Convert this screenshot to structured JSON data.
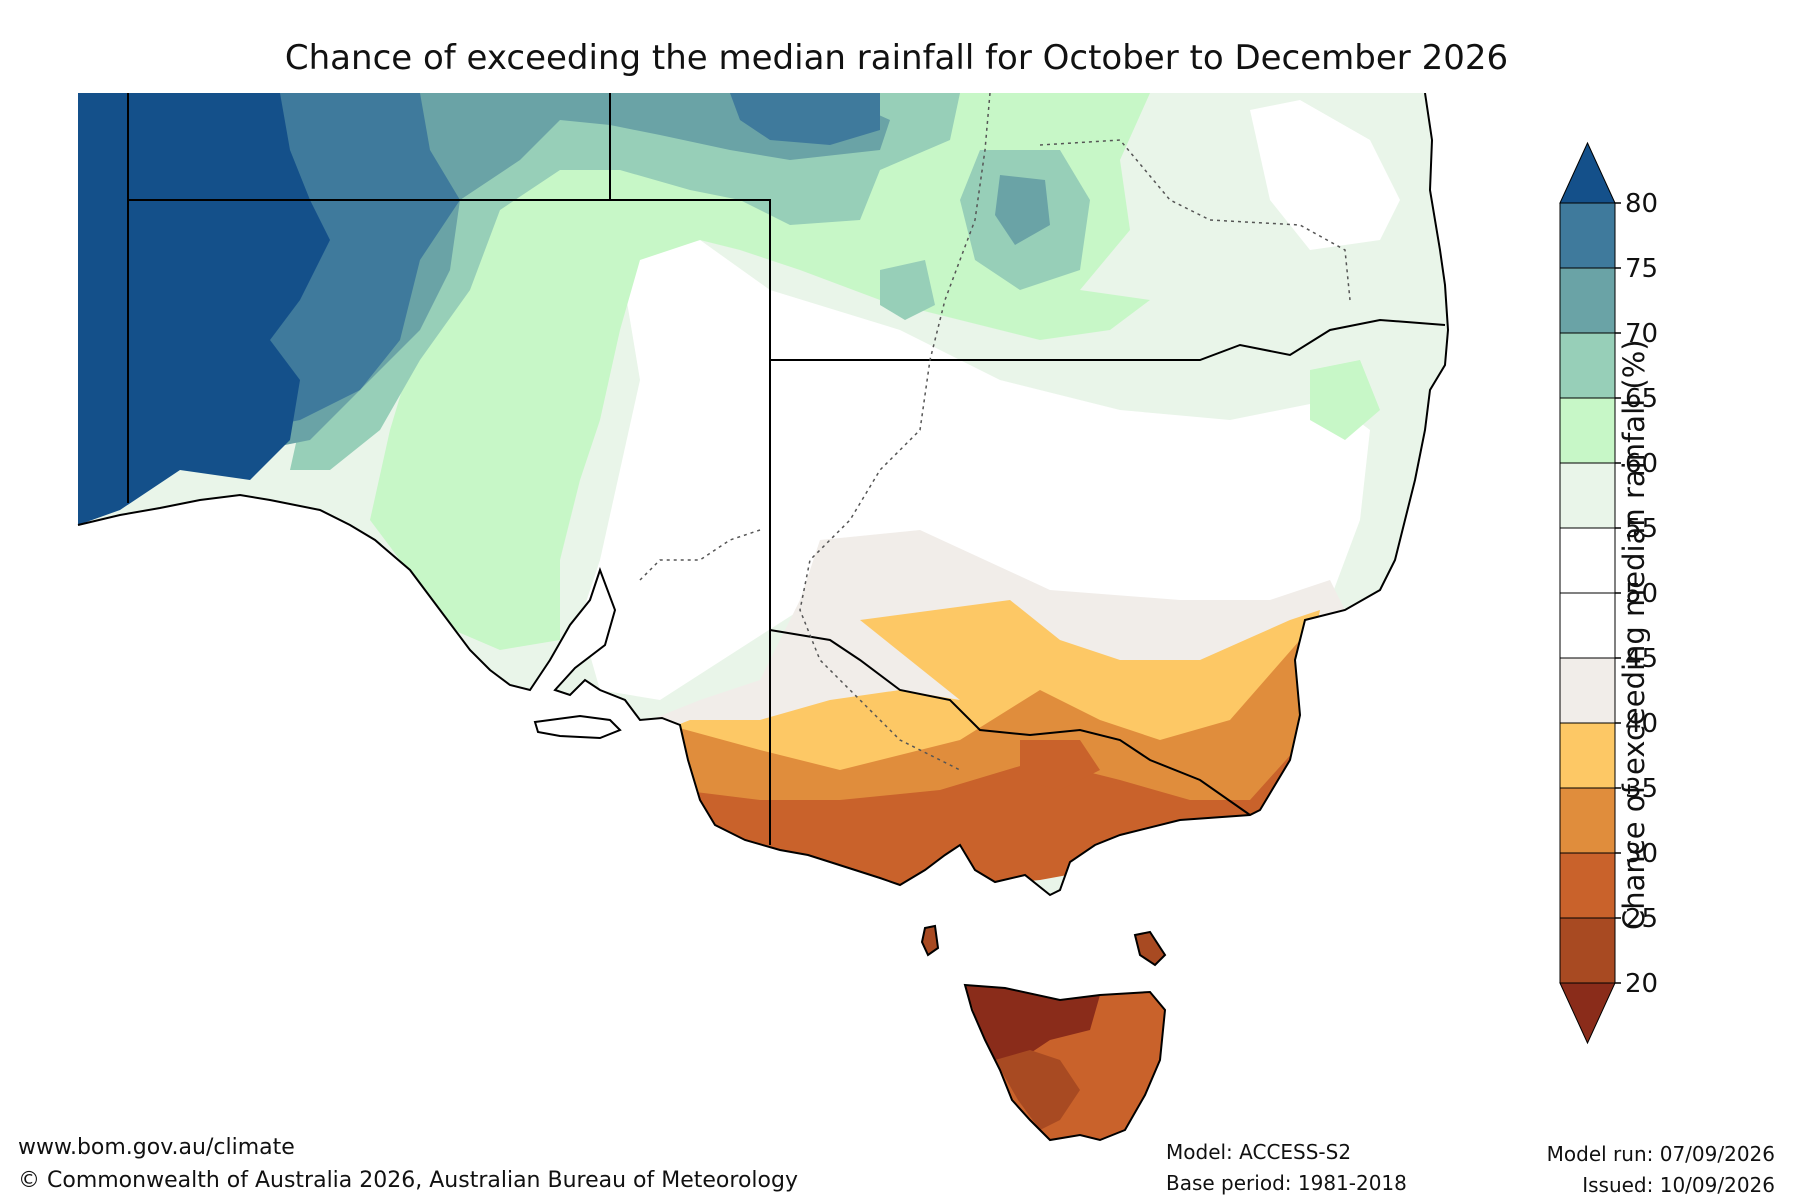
{
  "title": "Chance of exceeding the median rainfall for October to December 2026",
  "legend": {
    "label": "Chance of exceeding median rainfall (%)",
    "ticks": [
      "80",
      "75",
      "70",
      "65",
      "60",
      "55",
      "50",
      "45",
      "40",
      "35",
      "30",
      "25",
      "20"
    ],
    "colors_top_to_bottom": [
      "#14508a",
      "#3f7a9c",
      "#6aa3a6",
      "#97cfb8",
      "#c7f7c7",
      "#e9f5e9",
      "#ffffff",
      "#ffffff",
      "#f1ede9",
      "#fdc865",
      "#e08d3c",
      "#c9622b",
      "#a84a22",
      "#8a2c1a"
    ],
    "extend_top_color": "#14508a",
    "extend_bottom_color": "#8a2c1a"
  },
  "map": {
    "region": "South-eastern Australia",
    "colors": {
      "c80": "#14508a",
      "c75": "#3f7a9c",
      "c70": "#6aa3a6",
      "c65": "#97cfb8",
      "c60": "#c7f7c7",
      "c55": "#e9f5e9",
      "c45": "#f1ede9",
      "c40": "#fdc865",
      "c35": "#e08d3c",
      "c30": "#c9622b",
      "c25": "#a84a22",
      "c20": "#8a2c1a",
      "border": "#000000"
    }
  },
  "footer": {
    "website": "www.bom.gov.au/climate",
    "copyright": "© Commonwealth of Australia 2026, Australian Bureau of Meteorology",
    "model": "Model: ACCESS-S2",
    "base_period": "Base period: 1981-2018",
    "model_run": "Model run: 07/09/2026",
    "issued": "Issued: 10/09/2026"
  }
}
